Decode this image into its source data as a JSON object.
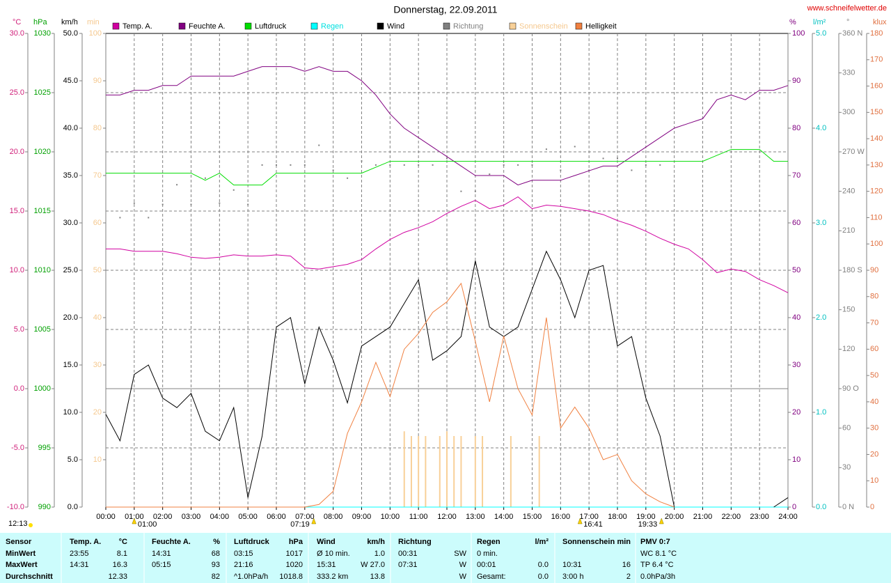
{
  "chart_data": {
    "type": "line",
    "title": "Donnerstag, 22.09.2011",
    "site": "www.schneifelwetter.de",
    "x": [
      "00:00",
      "00:30",
      "01:00",
      "01:30",
      "02:00",
      "02:30",
      "03:00",
      "03:30",
      "04:00",
      "04:30",
      "05:00",
      "05:30",
      "06:00",
      "06:30",
      "07:00",
      "07:30",
      "08:00",
      "08:30",
      "09:00",
      "09:30",
      "10:00",
      "10:30",
      "11:00",
      "11:30",
      "12:00",
      "12:30",
      "13:00",
      "13:30",
      "14:00",
      "14:30",
      "15:00",
      "15:30",
      "16:00",
      "16:30",
      "17:00",
      "17:30",
      "18:00",
      "18:30",
      "19:00",
      "19:30",
      "20:00",
      "20:30",
      "21:00",
      "21:30",
      "22:00",
      "22:30",
      "23:00",
      "23:30",
      "24:00"
    ],
    "xticks": [
      "00:00",
      "01:00",
      "02:00",
      "03:00",
      "04:00",
      "05:00",
      "06:00",
      "07:00",
      "08:00",
      "09:00",
      "10:00",
      "11:00",
      "12:00",
      "13:00",
      "14:00",
      "15:00",
      "16:00",
      "17:00",
      "18:00",
      "19:00",
      "20:00",
      "21:00",
      "22:00",
      "23:00",
      "24:00"
    ],
    "grid": true,
    "axes": [
      {
        "id": "C",
        "unit": "°C",
        "color": "#d0207a",
        "side": "left",
        "lim": [
          -10,
          30
        ],
        "grid": true,
        "ticks": [
          {
            "value": -10,
            "label": "-10.0"
          },
          {
            "value": -5,
            "label": "-5.0"
          },
          {
            "value": 0,
            "label": "0.0"
          },
          {
            "value": 5,
            "label": "5.0"
          },
          {
            "value": 10,
            "label": "10.0"
          },
          {
            "value": 15,
            "label": "15.0"
          },
          {
            "value": 20,
            "label": "20.0"
          },
          {
            "value": 25,
            "label": "25.0"
          },
          {
            "value": 30,
            "label": "30.0"
          }
        ]
      },
      {
        "id": "hPa",
        "unit": "hPa",
        "color": "#00a000",
        "side": "left",
        "lim": [
          990,
          1030
        ],
        "ticks": [
          990,
          995,
          1000,
          1005,
          1010,
          1015,
          1020,
          1025,
          1030
        ]
      },
      {
        "id": "kmh",
        "unit": "km/h",
        "color": "#000000",
        "side": "left",
        "lim": [
          0,
          50
        ],
        "ticks": [
          {
            "value": 0,
            "label": "0.0"
          },
          {
            "value": 5,
            "label": "5.0"
          },
          {
            "value": 10,
            "label": "10.0"
          },
          {
            "value": 15,
            "label": "15.0"
          },
          {
            "value": 20,
            "label": "20.0"
          },
          {
            "value": 25,
            "label": "25.0"
          },
          {
            "value": 30,
            "label": "30.0"
          },
          {
            "value": 35,
            "label": "35.0"
          },
          {
            "value": 40,
            "label": "40.0"
          },
          {
            "value": 45,
            "label": "45.0"
          },
          {
            "value": 50,
            "label": "50.0"
          }
        ]
      },
      {
        "id": "min",
        "unit": "min",
        "color": "#f5c88e",
        "side": "left",
        "lim": [
          0,
          100
        ],
        "ticks": [
          10,
          20,
          30,
          40,
          50,
          60,
          70,
          80,
          90,
          100
        ]
      },
      {
        "id": "pct",
        "unit": "%",
        "color": "#800080",
        "side": "right",
        "lim": [
          0,
          100
        ],
        "ticks": [
          0,
          10,
          20,
          30,
          40,
          50,
          60,
          70,
          80,
          90,
          100
        ]
      },
      {
        "id": "rain",
        "unit": "l/m²",
        "color": "#00c0c0",
        "side": "right",
        "lim": [
          0,
          5
        ],
        "ticks": [
          {
            "value": 0,
            "label": "0.0"
          },
          {
            "value": 1,
            "label": "1.0"
          },
          {
            "value": 2,
            "label": "2.0"
          },
          {
            "value": 3,
            "label": "3.0"
          },
          {
            "value": 4,
            "label": "4.0"
          },
          {
            "value": 5,
            "label": "5.0"
          }
        ]
      },
      {
        "id": "deg",
        "unit": "°",
        "color": "#808080",
        "side": "right",
        "lim": [
          0,
          360
        ],
        "ticks": [
          {
            "value": 0,
            "label": "0 N"
          },
          30,
          60,
          {
            "value": 90,
            "label": "90 O"
          },
          120,
          150,
          {
            "value": 180,
            "label": "180 S"
          },
          210,
          240,
          {
            "value": 270,
            "label": "270 W"
          },
          300,
          330,
          {
            "value": 360,
            "label": "360 N"
          }
        ]
      },
      {
        "id": "klux",
        "unit": "klux",
        "color": "#e07040",
        "side": "right",
        "lim": [
          0,
          180
        ],
        "ticks": [
          0,
          10,
          20,
          30,
          40,
          50,
          60,
          70,
          80,
          90,
          100,
          110,
          120,
          130,
          140,
          150,
          160,
          170,
          180
        ]
      }
    ],
    "series": [
      {
        "name": "Temp. A.",
        "color": "#d000a0",
        "axis": "C",
        "style": "line",
        "values": [
          11.8,
          11.8,
          11.6,
          11.6,
          11.6,
          11.4,
          11.1,
          11.0,
          11.1,
          11.3,
          11.2,
          11.2,
          11.3,
          11.2,
          10.2,
          10.1,
          10.3,
          10.5,
          10.9,
          11.8,
          12.6,
          13.2,
          13.6,
          14.1,
          14.8,
          15.4,
          15.9,
          15.2,
          15.5,
          16.2,
          15.2,
          15.5,
          15.4,
          15.2,
          15.0,
          14.7,
          14.2,
          13.8,
          13.3,
          12.7,
          12.2,
          11.8,
          10.9,
          9.8,
          10.1,
          9.9,
          9.2,
          8.7,
          8.1
        ]
      },
      {
        "name": "Feuchte A.",
        "color": "#800080",
        "axis": "pct",
        "style": "line",
        "values": [
          87,
          87,
          88,
          88,
          89,
          89,
          91,
          91,
          91,
          91,
          92,
          93,
          93,
          93,
          92,
          93,
          92,
          92,
          90,
          87,
          83,
          80,
          78,
          76,
          74,
          72,
          70,
          70,
          70,
          68,
          69,
          69,
          69,
          70,
          71,
          72,
          72,
          74,
          76,
          78,
          80,
          81,
          82,
          86,
          87,
          86,
          88,
          88,
          89
        ]
      },
      {
        "name": "Luftdruck",
        "color": "#00dd00",
        "axis": "hPa",
        "style": "line",
        "values": [
          1018.2,
          1018.2,
          1018.2,
          1018.2,
          1018.2,
          1018.2,
          1018.2,
          1017.6,
          1018.2,
          1017.2,
          1017.2,
          1017.2,
          1018.2,
          1018.2,
          1018.2,
          1018.2,
          1018.2,
          1018.2,
          1018.2,
          1018.7,
          1019.2,
          1019.2,
          1019.2,
          1019.2,
          1019.2,
          1019.2,
          1019.2,
          1019.2,
          1019.2,
          1019.2,
          1019.2,
          1019.2,
          1019.2,
          1019.2,
          1019.2,
          1019.2,
          1019.2,
          1019.2,
          1019.2,
          1019.2,
          1019.2,
          1019.2,
          1019.2,
          1019.7,
          1020.2,
          1020.2,
          1020.2,
          1019.2,
          1019.2
        ]
      },
      {
        "name": "Regen",
        "color": "#00ffff",
        "label_color": "#00e0e0",
        "axis": "rain",
        "style": "line",
        "x": [
          "00:00",
          "24:00"
        ],
        "values": [
          0,
          0
        ]
      },
      {
        "name": "Wind",
        "color": "#000000",
        "axis": "kmh",
        "style": "line",
        "values": [
          9.8,
          7.0,
          14.0,
          15.0,
          11.5,
          10.5,
          12.0,
          8.0,
          7.0,
          10.5,
          1.0,
          7.5,
          19.0,
          20.0,
          13.0,
          19.0,
          15.5,
          11.0,
          17.0,
          18.0,
          19.0,
          21.5,
          24.0,
          15.5,
          16.5,
          18.0,
          26.0,
          19.0,
          18.0,
          19.0,
          23.0,
          27.0,
          24.0,
          20.0,
          25.0,
          25.5,
          17.0,
          18.0,
          11.5,
          7.5,
          0.0,
          null,
          null,
          null,
          null,
          null,
          null,
          0.0,
          1.0
        ]
      },
      {
        "name": "Richtung",
        "color": "#808080",
        "label_color": "#808080",
        "axis": "deg",
        "style": "dots",
        "x": [
          "00:30",
          "01:00",
          "01:30",
          "02:00",
          "02:30",
          "03:00",
          "03:30",
          "04:00",
          "04:30",
          "05:00",
          "05:30",
          "06:00",
          "06:30",
          "07:00",
          "07:30",
          "08:00",
          "08:30",
          "09:00",
          "09:30",
          "10:00",
          "10:30",
          "11:00",
          "11:30",
          "12:00",
          "12:30",
          "13:00",
          "13:30",
          "14:00",
          "14:30",
          "15:00",
          "15:30",
          "16:00",
          "16:30",
          "17:00",
          "17:30",
          "18:00",
          "18:30",
          "19:00",
          "19:30"
        ],
        "values": [
          220,
          231,
          220,
          230,
          245,
          230,
          250,
          231,
          241,
          230,
          260,
          260,
          260,
          260,
          275,
          256,
          250,
          263,
          260,
          260,
          260,
          260,
          260,
          265,
          240,
          240,
          253,
          260,
          260,
          260,
          272,
          256,
          274,
          256,
          265,
          265,
          256,
          260,
          260
        ]
      },
      {
        "name": "Sonnenschein",
        "color": "#f8d098",
        "label_color": "#f5c88e",
        "axis": "min",
        "style": "bars",
        "x": [
          "10:30",
          "10:45",
          "11:00",
          "11:15",
          "11:45",
          "12:00",
          "12:15",
          "12:30",
          "13:00",
          "13:15",
          "14:15",
          "15:15"
        ],
        "values": [
          16,
          15,
          15,
          15,
          15,
          16,
          15,
          15,
          15,
          15,
          15,
          15
        ]
      },
      {
        "name": "Helligkeit",
        "color": "#f08040",
        "axis": "klux",
        "style": "line",
        "values": [
          0,
          0,
          0,
          0,
          0,
          0,
          0,
          0,
          0,
          0,
          0,
          0,
          0,
          0,
          0,
          1,
          6,
          28,
          40,
          55,
          42,
          60,
          66,
          74,
          78,
          85,
          63,
          40,
          65,
          45,
          35,
          72,
          30,
          38,
          30,
          18,
          20,
          10,
          5,
          2,
          0,
          null,
          null,
          null,
          null,
          null,
          null,
          null,
          null
        ]
      }
    ],
    "day_length": "12:13",
    "events": [
      "01:00",
      "07:19",
      "16:41",
      "19:33"
    ]
  },
  "table": {
    "header": [
      {
        "l": "Sensor"
      },
      {
        "l": "Temp. A.",
        "r": "°C"
      },
      {
        "l": "Feuchte A.",
        "r": "%"
      },
      {
        "l": "Luftdruck",
        "r": "hPa"
      },
      {
        "l": "Wind",
        "r": "km/h"
      },
      {
        "l": "Richtung"
      },
      {
        "l": "Regen",
        "r": "l/m²"
      },
      {
        "l": "Sonnenschein",
        "r": "min"
      },
      {
        "l": "PMV 0:7"
      }
    ],
    "rows": [
      [
        {
          "l": "MinWert"
        },
        {
          "l": "23:55",
          "r": "8.1"
        },
        {
          "l": "14:31",
          "r": "68"
        },
        {
          "l": "03:15",
          "r": "1017"
        },
        {
          "l": "Ø 10 min.",
          "r": "1.0"
        },
        {
          "l": "00:31",
          "r": "SW"
        },
        {
          "l": "0 min."
        },
        null,
        {
          "l": "WC 8.1 °C"
        }
      ],
      [
        {
          "l": "MaxWert"
        },
        {
          "l": "14:31",
          "r": "16.3"
        },
        {
          "l": "05:15",
          "r": "93"
        },
        {
          "l": "21:16",
          "r": "1020"
        },
        {
          "l": "15:31",
          "r": "W 27.0"
        },
        {
          "l": "07:31",
          "r": "W"
        },
        {
          "l": "00:01",
          "r": "0.0"
        },
        {
          "l": "10:31",
          "r": "16"
        },
        {
          "l": "TP 6.4 °C"
        }
      ],
      [
        {
          "l": "Durchschnitt"
        },
        {
          "r": "12.33"
        },
        {
          "r": "82"
        },
        {
          "l": "^1.0hPa/h",
          "r": "1018.8"
        },
        {
          "l": "333.2 km",
          "r": "13.8"
        },
        {
          "r": "W"
        },
        {
          "l": "Gesamt:",
          "r": "0.0"
        },
        {
          "l": "3:00 h",
          "r": "2"
        },
        {
          "l": "0.0hPa/3h"
        }
      ]
    ]
  }
}
